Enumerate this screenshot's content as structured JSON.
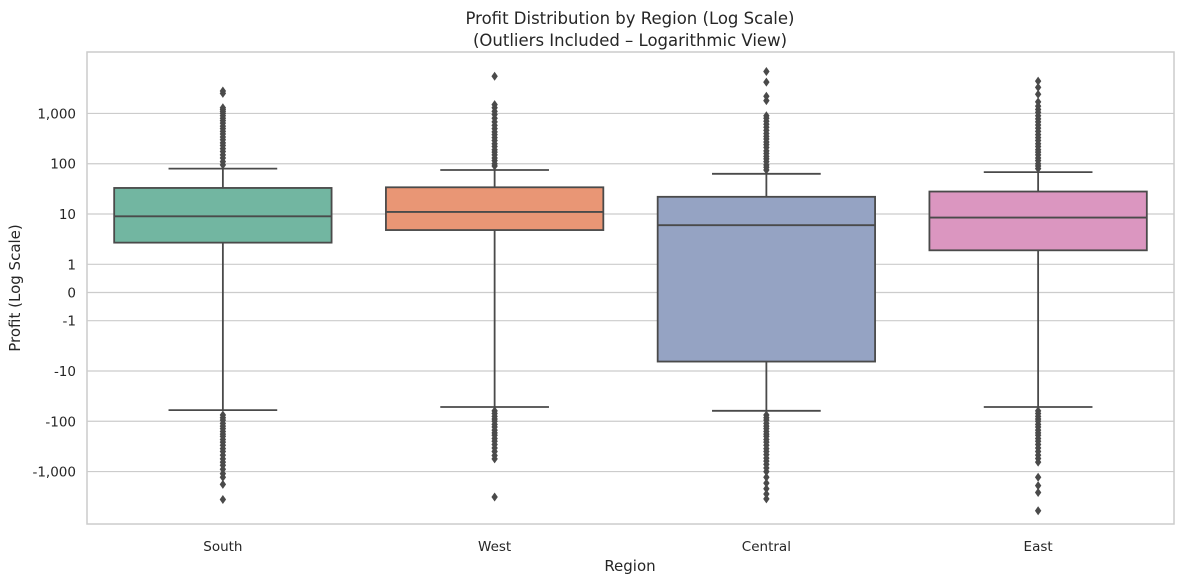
{
  "chart_data": {
    "type": "box",
    "title": "Profit Distribution by Region (Log Scale)",
    "subtitle": "(Outliers Included – Logarithmic View)",
    "xlabel": "Region",
    "ylabel": "Profit (Log Scale)",
    "y_scale": "symlog",
    "y_ticks": [
      -1000,
      -100,
      -10,
      -1,
      0,
      1,
      10,
      100,
      1000
    ],
    "y_tick_labels": [
      "-1,000",
      "-100",
      "-10",
      "-1",
      "0",
      "1",
      "10",
      "100",
      "1,000"
    ],
    "ylim": [
      -5000,
      8000
    ],
    "grid": "horizontal",
    "categories": [
      "South",
      "West",
      "Central",
      "East"
    ],
    "colors": [
      "#72b6a1",
      "#e99675",
      "#95a3c3",
      "#db96c0"
    ],
    "boxes": [
      {
        "name": "South",
        "whisker_low": -60,
        "q1": 2.7,
        "median": 9,
        "q3": 33,
        "whisker_high": 80,
        "outliers_high": [
          95,
          110,
          130,
          150,
          175,
          200,
          230,
          260,
          300,
          340,
          390,
          440,
          500,
          560,
          640,
          720,
          800,
          900,
          1000,
          1100,
          1200,
          1300,
          2500,
          2800
        ],
        "outliers_low": [
          -75,
          -85,
          -95,
          -110,
          -125,
          -140,
          -160,
          -180,
          -200,
          -230,
          -260,
          -300,
          -350,
          -400,
          -470,
          -560,
          -650,
          -750,
          -900,
          -1100,
          -1300,
          -1800,
          -3600
        ]
      },
      {
        "name": "West",
        "whisker_low": -52,
        "q1": 4.8,
        "median": 11,
        "q3": 34,
        "whisker_high": 75,
        "outliers_high": [
          90,
          100,
          115,
          130,
          150,
          170,
          190,
          220,
          250,
          290,
          330,
          380,
          430,
          500,
          580,
          680,
          800,
          950,
          1100,
          1300,
          1500,
          5500
        ],
        "outliers_low": [
          -62,
          -70,
          -80,
          -90,
          -100,
          -115,
          -130,
          -150,
          -170,
          -190,
          -220,
          -250,
          -290,
          -340,
          -400,
          -480,
          -560,
          -3200
        ]
      },
      {
        "name": "Central",
        "whisker_low": -62,
        "q1": -6.5,
        "median": 6,
        "q3": 22,
        "whisker_high": 63,
        "outliers_high": [
          75,
          85,
          95,
          110,
          125,
          140,
          160,
          180,
          210,
          240,
          270,
          310,
          350,
          400,
          460,
          530,
          610,
          700,
          800,
          900,
          1800,
          2200,
          4200,
          6800
        ],
        "outliers_low": [
          -75,
          -85,
          -95,
          -110,
          -125,
          -140,
          -160,
          -180,
          -200,
          -230,
          -260,
          -300,
          -350,
          -400,
          -460,
          -540,
          -620,
          -720,
          -850,
          -1000,
          -1300,
          -1700,
          -2200,
          -2800,
          -3500
        ]
      },
      {
        "name": "East",
        "whisker_low": -52,
        "q1": 1.9,
        "median": 8.5,
        "q3": 28,
        "whisker_high": 68,
        "outliers_high": [
          80,
          90,
          100,
          115,
          130,
          150,
          170,
          190,
          220,
          250,
          290,
          330,
          380,
          440,
          510,
          590,
          680,
          780,
          900,
          1050,
          1200,
          1400,
          1700,
          2400,
          3300,
          4400
        ],
        "outliers_low": [
          -62,
          -70,
          -80,
          -90,
          -100,
          -115,
          -130,
          -150,
          -170,
          -190,
          -220,
          -250,
          -290,
          -340,
          -400,
          -470,
          -550,
          -650,
          -1300,
          -1900,
          -2600,
          -6000
        ]
      }
    ]
  }
}
